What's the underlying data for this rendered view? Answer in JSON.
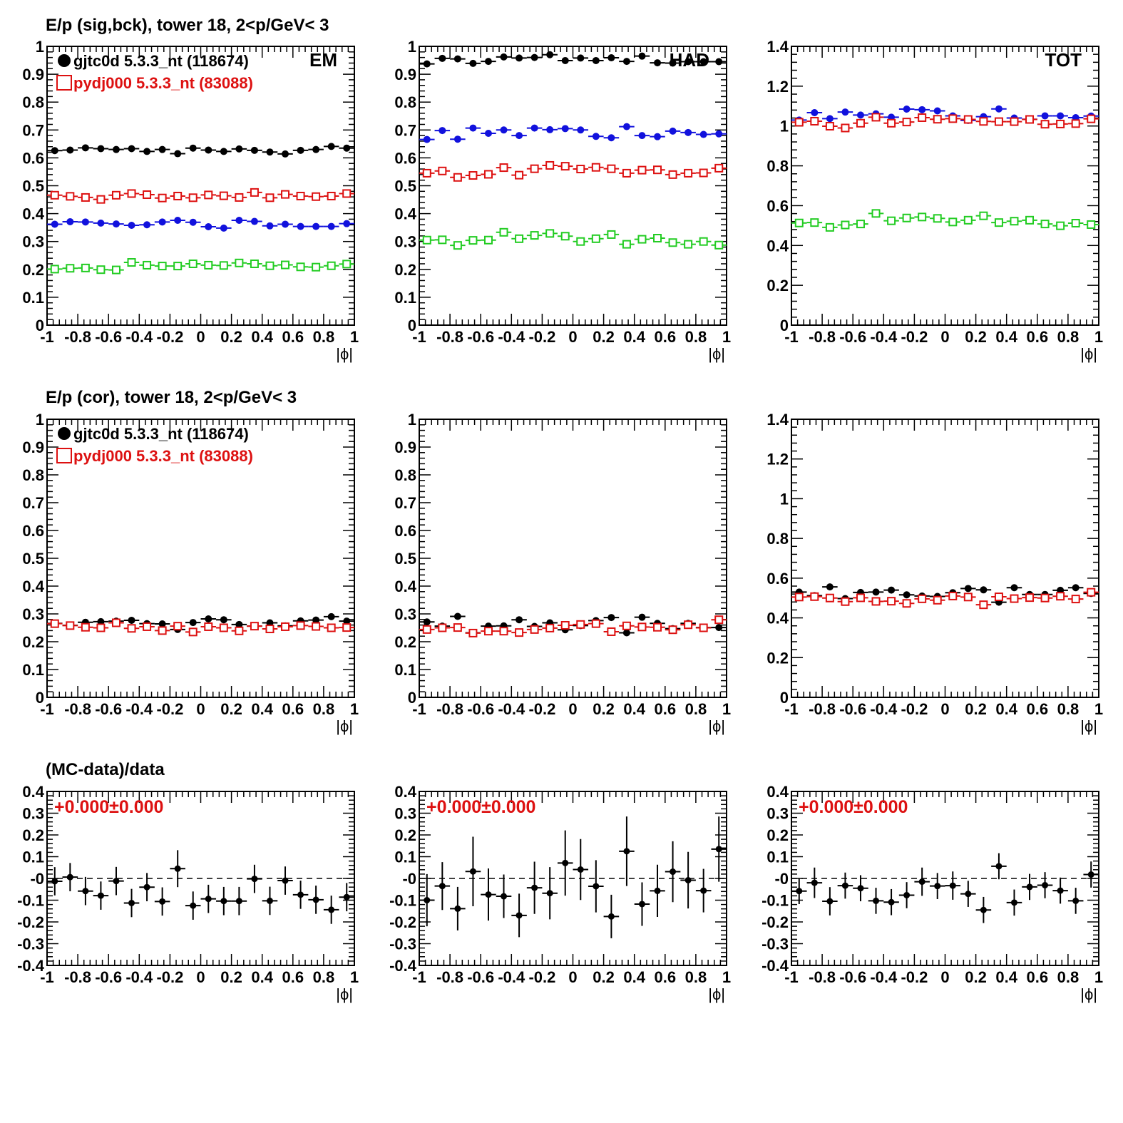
{
  "row_titles": [
    "E/p (sig,bck), tower 18,  2<p/GeV< 3",
    "E/p (cor), tower 18,  2<p/GeV< 3",
    "(MC-data)/data"
  ],
  "colors": {
    "data": "#000000",
    "mc": "#dd1111",
    "blue": "#1111dd",
    "green": "#22cc22"
  },
  "legend": [
    {
      "label": "gjtc0d 5.3.3_nt (118674)",
      "marker": "filled-circle",
      "color": "#000000"
    },
    {
      "label": "pydj000 5.3.3_nt (83088)",
      "marker": "open-square",
      "color": "#dd1111"
    }
  ],
  "chart_data": [
    {
      "type": "scatter",
      "panel": "row1-EM",
      "tag": "EM",
      "xlabel": "|ϕ|",
      "xlim": [
        -1,
        1
      ],
      "ylim": [
        0,
        1
      ],
      "x": [
        -0.95,
        -0.85,
        -0.75,
        -0.65,
        -0.55,
        -0.45,
        -0.35,
        -0.25,
        -0.15,
        -0.05,
        0.05,
        0.15,
        0.25,
        0.35,
        0.45,
        0.55,
        0.65,
        0.75,
        0.85,
        0.95
      ],
      "series": [
        {
          "name": "gjtc0d 5.3.3_nt (118674)",
          "marker": "filled-circle",
          "color": "#000000",
          "values": [
            0.626,
            0.628,
            0.636,
            0.633,
            0.63,
            0.633,
            0.623,
            0.63,
            0.615,
            0.635,
            0.628,
            0.623,
            0.632,
            0.627,
            0.621,
            0.614,
            0.627,
            0.63,
            0.641,
            0.635
          ]
        },
        {
          "name": "pydj000 5.3.3_nt (83088)",
          "marker": "open-square",
          "color": "#dd1111",
          "values": [
            0.466,
            0.462,
            0.458,
            0.451,
            0.466,
            0.472,
            0.468,
            0.456,
            0.463,
            0.457,
            0.467,
            0.464,
            0.458,
            0.476,
            0.457,
            0.469,
            0.463,
            0.461,
            0.463,
            0.472
          ]
        },
        {
          "marker": "filled-circle",
          "color": "#1111dd",
          "values": [
            0.362,
            0.371,
            0.37,
            0.366,
            0.363,
            0.358,
            0.36,
            0.37,
            0.376,
            0.369,
            0.353,
            0.348,
            0.376,
            0.372,
            0.356,
            0.362,
            0.354,
            0.354,
            0.354,
            0.364
          ]
        },
        {
          "marker": "open-square",
          "color": "#22cc22",
          "values": [
            0.201,
            0.204,
            0.205,
            0.199,
            0.198,
            0.225,
            0.215,
            0.212,
            0.212,
            0.22,
            0.215,
            0.214,
            0.223,
            0.22,
            0.213,
            0.216,
            0.209,
            0.208,
            0.213,
            0.219
          ]
        }
      ]
    },
    {
      "type": "scatter",
      "panel": "row1-HAD",
      "tag": "HAD",
      "xlabel": "|ϕ|",
      "xlim": [
        -1,
        1
      ],
      "ylim": [
        0,
        1
      ],
      "x": [
        -0.95,
        -0.85,
        -0.75,
        -0.65,
        -0.55,
        -0.45,
        -0.35,
        -0.25,
        -0.15,
        -0.05,
        0.05,
        0.15,
        0.25,
        0.35,
        0.45,
        0.55,
        0.65,
        0.75,
        0.85,
        0.95
      ],
      "series": [
        {
          "name": "gjtc0d 5.3.3_nt (118674)",
          "marker": "filled-circle",
          "color": "#000000",
          "values": [
            0.937,
            0.957,
            0.955,
            0.939,
            0.946,
            0.962,
            0.958,
            0.96,
            0.97,
            0.949,
            0.958,
            0.949,
            0.959,
            0.946,
            0.965,
            0.941,
            0.94,
            0.945,
            0.945,
            0.945
          ]
        },
        {
          "name": "pydj000 5.3.3_nt (83088)",
          "marker": "open-square",
          "color": "#dd1111",
          "values": [
            0.545,
            0.553,
            0.53,
            0.537,
            0.541,
            0.565,
            0.538,
            0.561,
            0.573,
            0.57,
            0.56,
            0.566,
            0.561,
            0.545,
            0.556,
            0.557,
            0.54,
            0.545,
            0.546,
            0.563
          ]
        },
        {
          "marker": "filled-circle",
          "color": "#1111dd",
          "values": [
            0.666,
            0.698,
            0.667,
            0.707,
            0.688,
            0.7,
            0.68,
            0.707,
            0.701,
            0.705,
            0.7,
            0.677,
            0.672,
            0.712,
            0.68,
            0.676,
            0.696,
            0.691,
            0.684,
            0.686
          ]
        },
        {
          "marker": "open-square",
          "color": "#22cc22",
          "values": [
            0.305,
            0.306,
            0.286,
            0.304,
            0.305,
            0.333,
            0.31,
            0.322,
            0.329,
            0.319,
            0.3,
            0.31,
            0.325,
            0.29,
            0.308,
            0.312,
            0.296,
            0.29,
            0.3,
            0.287
          ]
        }
      ]
    },
    {
      "type": "scatter",
      "panel": "row1-TOT",
      "tag": "TOT",
      "xlabel": "|ϕ|",
      "xlim": [
        -1,
        1
      ],
      "ylim": [
        0,
        1.4
      ],
      "x": [
        -0.95,
        -0.85,
        -0.75,
        -0.65,
        -0.55,
        -0.45,
        -0.35,
        -0.25,
        -0.15,
        -0.05,
        0.05,
        0.15,
        0.25,
        0.35,
        0.45,
        0.55,
        0.65,
        0.75,
        0.85,
        0.95
      ],
      "series": [
        {
          "marker": "filled-circle",
          "color": "#1111dd",
          "values": [
            1.03,
            1.067,
            1.037,
            1.07,
            1.055,
            1.061,
            1.044,
            1.085,
            1.082,
            1.076,
            1.051,
            1.028,
            1.047,
            1.086,
            1.04,
            1.034,
            1.051,
            1.051,
            1.042,
            1.05
          ]
        },
        {
          "name": "pydj000 5.3.3_nt (83088)",
          "marker": "open-square",
          "color": "#dd1111",
          "values": [
            1.019,
            1.024,
            0.999,
            0.99,
            1.014,
            1.044,
            1.014,
            1.02,
            1.042,
            1.034,
            1.037,
            1.033,
            1.023,
            1.022,
            1.022,
            1.033,
            1.009,
            1.01,
            1.012,
            1.036
          ]
        },
        {
          "marker": "open-square",
          "color": "#22cc22",
          "values": [
            0.513,
            0.515,
            0.491,
            0.503,
            0.508,
            0.561,
            0.524,
            0.538,
            0.543,
            0.536,
            0.518,
            0.527,
            0.549,
            0.515,
            0.522,
            0.527,
            0.508,
            0.499,
            0.512,
            0.505
          ]
        }
      ]
    },
    {
      "type": "scatter",
      "panel": "row2-EM",
      "xlabel": "|ϕ|",
      "xlim": [
        -1,
        1
      ],
      "ylim": [
        0,
        1
      ],
      "x": [
        -0.95,
        -0.85,
        -0.75,
        -0.65,
        -0.55,
        -0.45,
        -0.35,
        -0.25,
        -0.15,
        -0.05,
        0.05,
        0.15,
        0.25,
        0.35,
        0.45,
        0.55,
        0.65,
        0.75,
        0.85,
        0.95
      ],
      "series": [
        {
          "name": "gjtc0d 5.3.3_nt (118674)",
          "marker": "filled-circle",
          "color": "#000000",
          "values": [
            0.266,
            0.259,
            0.27,
            0.272,
            0.274,
            0.277,
            0.265,
            0.264,
            0.244,
            0.269,
            0.282,
            0.279,
            0.262,
            0.256,
            0.268,
            0.257,
            0.275,
            0.278,
            0.29,
            0.274
          ]
        },
        {
          "name": "pydj000 5.3.3_nt (83088)",
          "marker": "open-square",
          "color": "#dd1111",
          "values": [
            0.265,
            0.258,
            0.252,
            0.25,
            0.268,
            0.248,
            0.254,
            0.24,
            0.256,
            0.235,
            0.254,
            0.25,
            0.239,
            0.256,
            0.246,
            0.254,
            0.258,
            0.255,
            0.25,
            0.251
          ]
        }
      ]
    },
    {
      "type": "scatter",
      "panel": "row2-HAD",
      "xlabel": "|ϕ|",
      "xlim": [
        -1,
        1
      ],
      "ylim": [
        0,
        1
      ],
      "x": [
        -0.95,
        -0.85,
        -0.75,
        -0.65,
        -0.55,
        -0.45,
        -0.35,
        -0.25,
        -0.15,
        -0.05,
        0.05,
        0.15,
        0.25,
        0.35,
        0.45,
        0.55,
        0.65,
        0.75,
        0.85,
        0.95
      ],
      "series": [
        {
          "name": "gjtc0d 5.3.3_nt (118674)",
          "marker": "filled-circle",
          "color": "#000000",
          "values": [
            0.271,
            0.256,
            0.291,
            0.232,
            0.256,
            0.257,
            0.279,
            0.255,
            0.268,
            0.243,
            0.258,
            0.276,
            0.287,
            0.232,
            0.288,
            0.266,
            0.247,
            0.266,
            0.251,
            0.251
          ]
        },
        {
          "name": "pydj000 5.3.3_nt (83088)",
          "marker": "open-square",
          "color": "#dd1111",
          "values": [
            0.244,
            0.25,
            0.251,
            0.231,
            0.238,
            0.238,
            0.233,
            0.244,
            0.249,
            0.259,
            0.262,
            0.265,
            0.236,
            0.257,
            0.253,
            0.252,
            0.243,
            0.261,
            0.25,
            0.279
          ]
        }
      ]
    },
    {
      "type": "scatter",
      "panel": "row2-TOT",
      "xlabel": "|ϕ|",
      "xlim": [
        -1,
        1
      ],
      "ylim": [
        0,
        1.4
      ],
      "x": [
        -0.95,
        -0.85,
        -0.75,
        -0.65,
        -0.55,
        -0.45,
        -0.35,
        -0.25,
        -0.15,
        -0.05,
        0.05,
        0.15,
        0.25,
        0.35,
        0.45,
        0.55,
        0.65,
        0.75,
        0.85,
        0.95
      ],
      "series": [
        {
          "name": "gjtc0d 5.3.3_nt (118674)",
          "marker": "filled-circle",
          "color": "#000000",
          "values": [
            0.53,
            0.512,
            0.556,
            0.497,
            0.528,
            0.53,
            0.54,
            0.516,
            0.51,
            0.508,
            0.527,
            0.548,
            0.541,
            0.479,
            0.552,
            0.518,
            0.518,
            0.539,
            0.552,
            0.523
          ]
        },
        {
          "name": "pydj000 5.3.3_nt (83088)",
          "marker": "open-square",
          "color": "#dd1111",
          "values": [
            0.505,
            0.507,
            0.5,
            0.482,
            0.501,
            0.483,
            0.484,
            0.473,
            0.496,
            0.489,
            0.51,
            0.505,
            0.466,
            0.506,
            0.497,
            0.502,
            0.5,
            0.509,
            0.495,
            0.529
          ]
        }
      ]
    },
    {
      "type": "scatter",
      "panel": "row3-EM",
      "xlabel": "|ϕ|",
      "xlim": [
        -1,
        1
      ],
      "ylim": [
        -0.4,
        0.4
      ],
      "reference_line": 0,
      "annotation": "+0.000±0.000",
      "x": [
        -0.95,
        -0.85,
        -0.75,
        -0.65,
        -0.55,
        -0.45,
        -0.35,
        -0.25,
        -0.15,
        -0.05,
        0.05,
        0.15,
        0.25,
        0.35,
        0.45,
        0.55,
        0.65,
        0.75,
        0.85,
        0.95
      ],
      "series": [
        {
          "marker": "filled-circle",
          "color": "#000000",
          "values": [
            -0.013,
            0.006,
            -0.058,
            -0.079,
            -0.012,
            -0.113,
            -0.04,
            -0.106,
            0.045,
            -0.125,
            -0.094,
            -0.104,
            -0.104,
            -0.002,
            -0.103,
            -0.01,
            -0.075,
            -0.098,
            -0.144,
            -0.086
          ],
          "errors": [
            0.065,
            0.065,
            0.065,
            0.065,
            0.065,
            0.065,
            0.065,
            0.065,
            0.085,
            0.065,
            0.065,
            0.065,
            0.065,
            0.065,
            0.065,
            0.065,
            0.065,
            0.065,
            0.065,
            0.065
          ]
        }
      ]
    },
    {
      "type": "scatter",
      "panel": "row3-HAD",
      "xlabel": "|ϕ|",
      "xlim": [
        -1,
        1
      ],
      "ylim": [
        -0.4,
        0.4
      ],
      "reference_line": 0,
      "annotation": "+0.000±0.000",
      "x": [
        -0.95,
        -0.85,
        -0.75,
        -0.65,
        -0.55,
        -0.45,
        -0.35,
        -0.25,
        -0.15,
        -0.05,
        0.05,
        0.15,
        0.25,
        0.35,
        0.45,
        0.55,
        0.65,
        0.75,
        0.85,
        0.95
      ],
      "series": [
        {
          "marker": "filled-circle",
          "color": "#000000",
          "values": [
            -0.1,
            -0.035,
            -0.139,
            0.032,
            -0.074,
            -0.082,
            -0.17,
            -0.043,
            -0.068,
            0.071,
            0.041,
            -0.036,
            -0.175,
            0.125,
            -0.118,
            -0.057,
            0.031,
            -0.008,
            -0.056,
            0.135
          ],
          "errors": [
            0.12,
            0.11,
            0.1,
            0.16,
            0.12,
            0.1,
            0.1,
            0.12,
            0.12,
            0.15,
            0.14,
            0.12,
            0.1,
            0.16,
            0.1,
            0.12,
            0.14,
            0.13,
            0.1,
            0.15
          ]
        }
      ]
    },
    {
      "type": "scatter",
      "panel": "row3-TOT",
      "xlabel": "|ϕ|",
      "xlim": [
        -1,
        1
      ],
      "ylim": [
        -0.4,
        0.4
      ],
      "reference_line": 0,
      "annotation": "+0.000±0.000",
      "x": [
        -0.95,
        -0.85,
        -0.75,
        -0.65,
        -0.55,
        -0.45,
        -0.35,
        -0.25,
        -0.15,
        -0.05,
        0.05,
        0.15,
        0.25,
        0.35,
        0.45,
        0.55,
        0.65,
        0.75,
        0.85,
        0.95
      ],
      "series": [
        {
          "marker": "filled-circle",
          "color": "#000000",
          "values": [
            -0.058,
            -0.02,
            -0.105,
            -0.033,
            -0.045,
            -0.103,
            -0.109,
            -0.077,
            -0.015,
            -0.035,
            -0.033,
            -0.071,
            -0.145,
            0.056,
            -0.111,
            -0.039,
            -0.031,
            -0.056,
            -0.103,
            0.018
          ],
          "errors": [
            0.06,
            0.07,
            0.065,
            0.06,
            0.06,
            0.06,
            0.06,
            0.06,
            0.065,
            0.06,
            0.065,
            0.06,
            0.06,
            0.06,
            0.06,
            0.06,
            0.06,
            0.06,
            0.06,
            0.06
          ]
        }
      ]
    }
  ]
}
